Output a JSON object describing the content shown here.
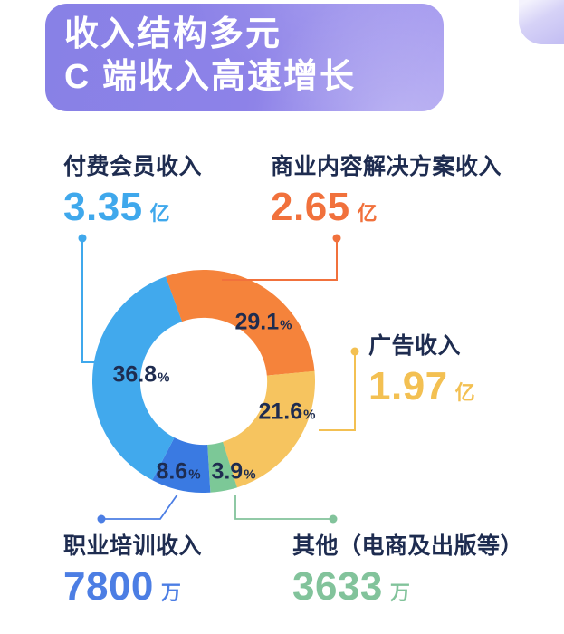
{
  "header": {
    "line1": "收入结构多元",
    "line2": "C 端收入高速增长"
  },
  "metrics": [
    {
      "label": "付费会员收入",
      "value": "3.35",
      "unit": "亿",
      "color": "#3FA8EC"
    },
    {
      "label": "商业内容解决方案收入",
      "value": "2.65",
      "unit": "亿",
      "color": "#F1713C"
    },
    {
      "label": "广告收入",
      "value": "1.97",
      "unit": "亿",
      "color": "#F3C052"
    },
    {
      "label": "职业培训收入",
      "value": "7800",
      "unit": "万",
      "color": "#4C7EE4"
    },
    {
      "label": "其他（电商及出版等）",
      "value": "3633",
      "unit": "万",
      "color": "#82C39B"
    }
  ],
  "chart_data": {
    "type": "pie",
    "variant": "donut",
    "title": "收入结构多元 C 端收入高速增长",
    "percent_suffix": "%",
    "start_angle_deg": -20,
    "direction": "clockwise",
    "inner_radius_ratio": 0.57,
    "segments": [
      {
        "label": "商业内容解决方案收入",
        "percent": 29.1,
        "value": "2.65",
        "unit": "亿",
        "color": "#F5833B"
      },
      {
        "label": "广告收入",
        "percent": 21.6,
        "value": "1.97",
        "unit": "亿",
        "color": "#F6C45F"
      },
      {
        "label": "其他（电商及出版等）",
        "percent": 3.9,
        "value": "3633",
        "unit": "万",
        "color": "#7CC897"
      },
      {
        "label": "职业培训收入",
        "percent": 8.6,
        "value": "7800",
        "unit": "万",
        "color": "#3A7AE2"
      },
      {
        "label": "付费会员收入",
        "percent": 36.8,
        "value": "3.35",
        "unit": "亿",
        "color": "#41A9ED"
      }
    ],
    "legend": "none",
    "colors": {
      "text_dark": "#1E2C50",
      "header_gradient_start": "#8881E6",
      "header_gradient_end": "#A89DF0"
    }
  }
}
